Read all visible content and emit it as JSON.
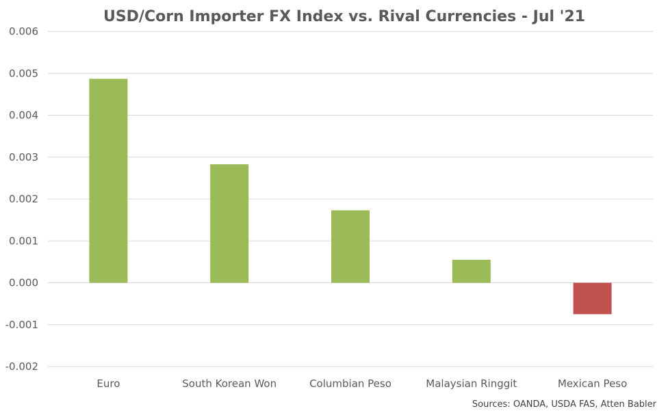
{
  "chart_data": {
    "type": "bar",
    "title": "USD/Corn Importer FX Index vs. Rival Currencies - Jul '21",
    "categories": [
      "Euro",
      "South Korean Won",
      "Columbian Peso",
      "Malaysian Ringgit",
      "Mexican Peso"
    ],
    "values": [
      0.00487,
      0.00283,
      0.00173,
      0.00055,
      -0.00075
    ],
    "ylim": [
      -0.002,
      0.006
    ],
    "yticks": [
      "0.006",
      "0.005",
      "0.004",
      "0.003",
      "0.002",
      "0.001",
      "0.000",
      "-0.001",
      "-0.002"
    ],
    "grid": true,
    "positive_color": "#9bbb59",
    "negative_color": "#c0504d",
    "source": "Sources: OANDA, USDA FAS, Atten Babler"
  }
}
